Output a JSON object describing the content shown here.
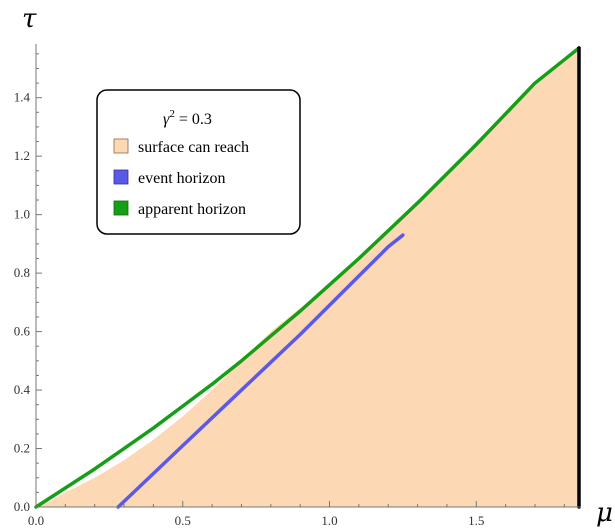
{
  "chart_data": {
    "type": "area",
    "title": "",
    "xlabel": "μ",
    "ylabel": "τ",
    "xlim": [
      0,
      1.85
    ],
    "ylim": [
      0,
      1.57
    ],
    "xticks": [
      0.0,
      0.5,
      1.0,
      1.5
    ],
    "xtick_labels": [
      "0.0",
      "0.5",
      "1.0",
      "1.5"
    ],
    "yticks": [
      0.0,
      0.2,
      0.4,
      0.6,
      0.8,
      1.0,
      1.2,
      1.4
    ],
    "ytick_labels": [
      "0.0",
      "0.2",
      "0.4",
      "0.6",
      "0.8",
      "1.0",
      "1.2",
      "1.4"
    ],
    "grid": false,
    "legend": {
      "placement": "top-left",
      "title_var": "γ",
      "title_exp": "2",
      "title_rest": " = 0.3",
      "entries": [
        {
          "label": "surface can reach",
          "color": "#fcd8b4"
        },
        {
          "label": "event horizon",
          "color": "#5a5ae6"
        },
        {
          "label": "apparent horizon",
          "color": "#169e16"
        }
      ]
    },
    "series": [
      {
        "name": "surface can reach",
        "kind": "fill",
        "color": "#fcd8b4",
        "x": [
          0.0,
          0.05,
          0.1,
          0.2,
          0.3,
          0.4,
          0.5,
          0.6,
          0.7,
          0.8,
          0.9,
          1.0,
          1.1,
          1.2,
          1.3,
          1.4,
          1.5,
          1.6,
          1.7,
          1.85
        ],
        "y": [
          0.0,
          0.02,
          0.05,
          0.1,
          0.16,
          0.23,
          0.31,
          0.4,
          0.5,
          0.6,
          0.68,
          0.76,
          0.85,
          0.94,
          1.04,
          1.14,
          1.25,
          1.35,
          1.44,
          1.57
        ]
      },
      {
        "name": "event horizon",
        "kind": "line",
        "color": "#5a5ae6",
        "x": [
          0.28,
          0.5,
          0.7,
          0.9,
          1.0,
          1.1,
          1.2,
          1.25
        ],
        "y": [
          0.0,
          0.21,
          0.4,
          0.59,
          0.69,
          0.79,
          0.89,
          0.93
        ]
      },
      {
        "name": "apparent horizon",
        "kind": "line",
        "color": "#169e16",
        "x": [
          0.0,
          0.1,
          0.2,
          0.3,
          0.4,
          0.5,
          0.6,
          0.7,
          0.8,
          0.9,
          1.0,
          1.1,
          1.2,
          1.3,
          1.4,
          1.5,
          1.6,
          1.7,
          1.8,
          1.85
        ],
        "y": [
          0.0,
          0.065,
          0.13,
          0.2,
          0.27,
          0.345,
          0.42,
          0.5,
          0.585,
          0.67,
          0.76,
          0.85,
          0.945,
          1.04,
          1.14,
          1.24,
          1.345,
          1.45,
          1.53,
          1.57
        ]
      },
      {
        "name": "",
        "kind": "vline",
        "color": "#000000",
        "x": [
          1.85,
          1.85
        ],
        "y": [
          0.0,
          1.57
        ]
      }
    ]
  }
}
